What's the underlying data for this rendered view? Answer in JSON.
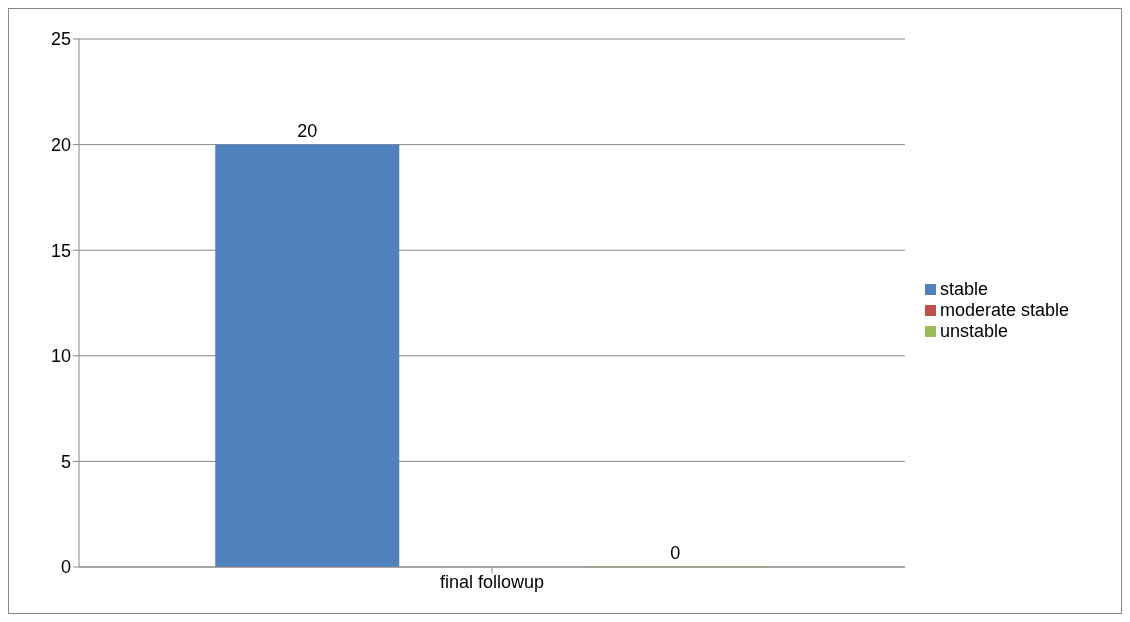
{
  "chart_data": {
    "type": "bar",
    "categories": [
      "final followup"
    ],
    "series": [
      {
        "name": "stable",
        "color": "#4f81bd",
        "values": [
          20
        ]
      },
      {
        "name": "moderate stable",
        "color": "#c0504d",
        "values": [
          null
        ]
      },
      {
        "name": "unstable",
        "color": "#9bbb59",
        "values": [
          0
        ]
      }
    ],
    "ylim": [
      0,
      25
    ],
    "yticks": [
      0,
      5,
      10,
      15,
      20,
      25
    ],
    "grid": "y",
    "legend": "right",
    "data_labels": true
  }
}
